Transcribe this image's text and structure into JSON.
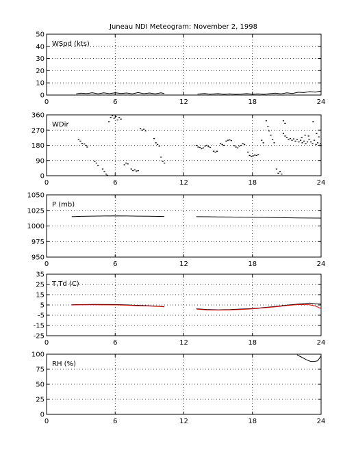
{
  "title": "Juneau NDI Meteogram:  November  2, 1998",
  "chart_data": [
    {
      "type": "line",
      "label": "WSpd (kts)",
      "xlim": [
        0,
        24
      ],
      "ylim": [
        0,
        50
      ],
      "xticks": [
        0,
        6,
        12,
        18,
        24
      ],
      "yticks": [
        0,
        10,
        20,
        30,
        40,
        50
      ],
      "grid": true,
      "series": [
        {
          "color": "#000000",
          "segments": [
            [
              [
                2.6,
                1.0
              ],
              [
                3.0,
                1.6
              ],
              [
                3.5,
                1.2
              ],
              [
                4.0,
                1.9
              ],
              [
                4.5,
                1.0
              ],
              [
                5.0,
                1.8
              ],
              [
                5.5,
                1.1
              ],
              [
                6.0,
                1.9
              ],
              [
                6.5,
                1.3
              ],
              [
                7.0,
                1.7
              ],
              [
                7.5,
                1.0
              ],
              [
                8.0,
                2.0
              ],
              [
                8.5,
                1.1
              ],
              [
                9.0,
                1.7
              ],
              [
                9.5,
                1.0
              ],
              [
                10.0,
                1.8
              ],
              [
                10.3,
                1.2
              ]
            ],
            [
              [
                13.2,
                0.8
              ],
              [
                13.8,
                1.3
              ],
              [
                14.3,
                0.7
              ],
              [
                15.0,
                1.2
              ],
              [
                15.5,
                0.6
              ],
              [
                16.0,
                1.0
              ],
              [
                16.5,
                0.6
              ],
              [
                17.0,
                0.8
              ],
              [
                17.5,
                1.2
              ],
              [
                18.0,
                0.7
              ],
              [
                18.5,
                1.0
              ],
              [
                19.0,
                0.6
              ],
              [
                19.5,
                1.1
              ],
              [
                20.0,
                1.5
              ],
              [
                20.5,
                1.0
              ],
              [
                21.0,
                1.8
              ],
              [
                21.5,
                1.3
              ],
              [
                22.0,
                2.3
              ],
              [
                22.5,
                2.0
              ],
              [
                23.0,
                2.8
              ],
              [
                23.5,
                2.4
              ],
              [
                24.0,
                3.3
              ]
            ]
          ]
        }
      ]
    },
    {
      "type": "scatter",
      "label": "WDir",
      "xlim": [
        0,
        24
      ],
      "ylim": [
        0,
        360
      ],
      "xticks": [
        0,
        6,
        12,
        18,
        24
      ],
      "yticks": [
        0,
        90,
        180,
        270,
        360
      ],
      "grid": true,
      "series": [
        {
          "color": "#000000",
          "points": [
            [
              2.8,
              215
            ],
            [
              2.95,
              205
            ],
            [
              3.1,
              192
            ],
            [
              3.3,
              188
            ],
            [
              3.45,
              180
            ],
            [
              3.55,
              170
            ],
            [
              4.2,
              85
            ],
            [
              4.35,
              75
            ],
            [
              4.5,
              60
            ],
            [
              4.9,
              40
            ],
            [
              5.05,
              25
            ],
            [
              5.2,
              10
            ],
            [
              5.3,
              3
            ],
            [
              5.45,
              320
            ],
            [
              5.6,
              345
            ],
            [
              5.75,
              355
            ],
            [
              5.9,
              340
            ],
            [
              6.05,
              350
            ],
            [
              6.2,
              330
            ],
            [
              6.35,
              345
            ],
            [
              6.5,
              335
            ],
            [
              6.8,
              65
            ],
            [
              6.95,
              75
            ],
            [
              7.1,
              70
            ],
            [
              7.4,
              40
            ],
            [
              7.55,
              30
            ],
            [
              7.7,
              35
            ],
            [
              7.85,
              28
            ],
            [
              8.0,
              30
            ],
            [
              8.2,
              280
            ],
            [
              8.35,
              270
            ],
            [
              8.5,
              275
            ],
            [
              8.65,
              265
            ],
            [
              9.4,
              220
            ],
            [
              9.55,
              195
            ],
            [
              9.7,
              185
            ],
            [
              9.85,
              175
            ],
            [
              10.0,
              110
            ],
            [
              10.15,
              85
            ],
            [
              10.3,
              75
            ],
            [
              13.1,
              180
            ],
            [
              13.25,
              170
            ],
            [
              13.4,
              168
            ],
            [
              13.55,
              160
            ],
            [
              13.7,
              165
            ],
            [
              13.85,
              175
            ],
            [
              14.0,
              180
            ],
            [
              14.15,
              172
            ],
            [
              14.3,
              168
            ],
            [
              14.6,
              145
            ],
            [
              14.75,
              140
            ],
            [
              14.9,
              145
            ],
            [
              15.2,
              190
            ],
            [
              15.35,
              185
            ],
            [
              15.5,
              180
            ],
            [
              15.7,
              205
            ],
            [
              15.85,
              210
            ],
            [
              16.0,
              212
            ],
            [
              16.15,
              208
            ],
            [
              16.4,
              178
            ],
            [
              16.55,
              170
            ],
            [
              16.7,
              165
            ],
            [
              16.85,
              175
            ],
            [
              17.0,
              180
            ],
            [
              17.15,
              190
            ],
            [
              17.3,
              185
            ],
            [
              17.6,
              140
            ],
            [
              17.75,
              120
            ],
            [
              17.9,
              115
            ],
            [
              18.05,
              118
            ],
            [
              18.2,
              122
            ],
            [
              18.35,
              120
            ],
            [
              18.5,
              125
            ],
            [
              18.8,
              210
            ],
            [
              18.95,
              195
            ],
            [
              19.2,
              325
            ],
            [
              19.35,
              290
            ],
            [
              19.45,
              265
            ],
            [
              19.6,
              240
            ],
            [
              19.75,
              215
            ],
            [
              19.9,
              195
            ],
            [
              20.1,
              40
            ],
            [
              20.25,
              15
            ],
            [
              20.4,
              25
            ],
            [
              20.55,
              10
            ],
            [
              20.7,
              250
            ],
            [
              20.85,
              235
            ],
            [
              21.0,
              225
            ],
            [
              21.15,
              215
            ],
            [
              21.3,
              220
            ],
            [
              21.45,
              210
            ],
            [
              21.6,
              218
            ],
            [
              21.75,
              205
            ],
            [
              21.9,
              215
            ],
            [
              22.05,
              200
            ],
            [
              22.2,
              210
            ],
            [
              22.35,
              195
            ],
            [
              22.5,
              205
            ],
            [
              22.65,
              190
            ],
            [
              22.8,
              200
            ],
            [
              22.95,
              215
            ],
            [
              23.1,
              200
            ],
            [
              23.25,
              190
            ],
            [
              23.4,
              210
            ],
            [
              23.55,
              185
            ],
            [
              23.7,
              195
            ],
            [
              23.85,
              180
            ],
            [
              24.0,
              178
            ],
            [
              20.7,
              325
            ],
            [
              20.85,
              310
            ],
            [
              22.3,
              225
            ],
            [
              22.6,
              240
            ],
            [
              22.9,
              235
            ],
            [
              23.3,
              320
            ],
            [
              23.6,
              250
            ],
            [
              23.8,
              230
            ],
            [
              23.95,
              190
            ]
          ]
        }
      ]
    },
    {
      "type": "line",
      "label": "P (mb)",
      "xlim": [
        0,
        24
      ],
      "ylim": [
        950,
        1050
      ],
      "xticks": [
        0,
        6,
        12,
        18,
        24
      ],
      "yticks": [
        950,
        975,
        1000,
        1025,
        1050
      ],
      "grid": true,
      "series": [
        {
          "color": "#000000",
          "segments": [
            [
              [
                2.2,
                1015
              ],
              [
                3.0,
                1015.5
              ],
              [
                4.0,
                1015.8
              ],
              [
                5.0,
                1016.0
              ],
              [
                6.0,
                1016.3
              ],
              [
                7.0,
                1016.0
              ],
              [
                8.0,
                1015.8
              ],
              [
                9.0,
                1015.6
              ],
              [
                10.3,
                1015.3
              ]
            ],
            [
              [
                13.1,
                1015.0
              ],
              [
                14.0,
                1014.8
              ],
              [
                15.0,
                1014.6
              ],
              [
                16.0,
                1014.4
              ],
              [
                17.0,
                1014.2
              ],
              [
                18.0,
                1014.0
              ],
              [
                19.0,
                1013.8
              ],
              [
                20.0,
                1013.5
              ],
              [
                21.0,
                1013.2
              ],
              [
                22.0,
                1013.0
              ],
              [
                23.0,
                1012.8
              ],
              [
                24.0,
                1012.6
              ]
            ]
          ]
        }
      ]
    },
    {
      "type": "line",
      "label": "T,Td (C)",
      "xlim": [
        0,
        24
      ],
      "ylim": [
        -25,
        35
      ],
      "xticks": [
        0,
        6,
        12,
        18,
        24
      ],
      "yticks": [
        -25,
        -15,
        -5,
        5,
        15,
        25,
        35
      ],
      "grid": true,
      "series": [
        {
          "color": "#000000",
          "segments": [
            [
              [
                2.2,
                5.3
              ],
              [
                4.0,
                5.5
              ],
              [
                6.0,
                5.4
              ],
              [
                7.0,
                5.1
              ],
              [
                8.0,
                4.6
              ],
              [
                9.0,
                4.2
              ],
              [
                10.0,
                3.6
              ],
              [
                10.3,
                3.4
              ]
            ],
            [
              [
                13.1,
                1.3
              ],
              [
                14.0,
                0.6
              ],
              [
                15.0,
                0.3
              ],
              [
                16.0,
                0.5
              ],
              [
                17.0,
                1.0
              ],
              [
                18.0,
                1.5
              ],
              [
                19.0,
                2.5
              ],
              [
                20.0,
                3.5
              ],
              [
                21.0,
                4.8
              ],
              [
                22.0,
                5.8
              ],
              [
                23.0,
                6.8
              ],
              [
                23.5,
                6.2
              ],
              [
                24.0,
                5.8
              ]
            ]
          ]
        },
        {
          "color": "#e00000",
          "segments": [
            [
              [
                2.2,
                5.0
              ],
              [
                4.0,
                5.2
              ],
              [
                6.0,
                5.0
              ],
              [
                7.0,
                4.7
              ],
              [
                8.0,
                4.2
              ],
              [
                9.0,
                3.9
              ],
              [
                10.0,
                3.4
              ],
              [
                10.3,
                3.1
              ]
            ],
            [
              [
                13.1,
                0.9
              ],
              [
                14.0,
                0.2
              ],
              [
                15.0,
                0.0
              ],
              [
                16.0,
                0.2
              ],
              [
                17.0,
                0.6
              ],
              [
                18.0,
                1.2
              ],
              [
                19.0,
                2.2
              ],
              [
                20.0,
                3.2
              ],
              [
                21.0,
                4.4
              ],
              [
                22.0,
                5.4
              ],
              [
                23.0,
                5.2
              ],
              [
                23.5,
                4.0
              ],
              [
                24.0,
                1.5
              ]
            ]
          ]
        }
      ]
    },
    {
      "type": "line",
      "label": "RH (%)",
      "xlim": [
        0,
        24
      ],
      "ylim": [
        0,
        100
      ],
      "xticks": [
        0,
        6,
        12,
        18,
        24
      ],
      "yticks": [
        0,
        25,
        50,
        75,
        100
      ],
      "grid": true,
      "series": [
        {
          "color": "#000000",
          "segments": [
            [
              [
                21.9,
                99
              ],
              [
                22.2,
                96
              ],
              [
                22.5,
                93
              ],
              [
                22.8,
                90
              ],
              [
                23.1,
                88
              ],
              [
                23.4,
                88
              ],
              [
                23.7,
                89
              ],
              [
                24.0,
                97
              ]
            ]
          ]
        }
      ]
    }
  ]
}
